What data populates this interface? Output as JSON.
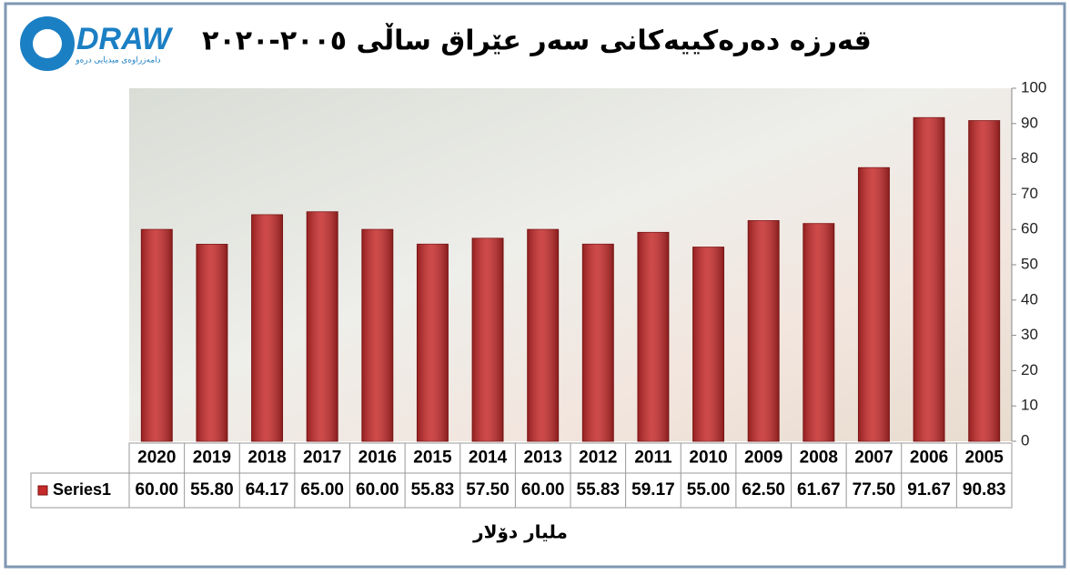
{
  "chart_data": {
    "type": "bar",
    "title": "قەرزە دەرەکییەکانی سەر عێراق ساڵی ٢٠٠٥-٢٠٢٠",
    "x_label": "ملیار دۆلار",
    "categories": [
      "2020",
      "2019",
      "2018",
      "2017",
      "2016",
      "2015",
      "2014",
      "2013",
      "2012",
      "2011",
      "2010",
      "2009",
      "2008",
      "2007",
      "2006",
      "2005"
    ],
    "series": [
      {
        "name": "Series1",
        "color": "#c62a2a",
        "values": [
          60,
          55.8,
          64.17,
          65,
          60,
          55.83,
          57.5,
          60,
          55.83,
          59.17,
          55,
          62.5,
          61.67,
          77.5,
          91.67,
          90.83
        ],
        "value_labels": [
          "60.00",
          "55.80",
          "64.17",
          "65.00",
          "60.00",
          "55.83",
          "57.50",
          "60.00",
          "55.83",
          "59.17",
          "55.00",
          "62.50",
          "61.67",
          "77.50",
          "91.67",
          "90.83"
        ]
      }
    ],
    "ylim": [
      0,
      100
    ],
    "yticks": [
      0,
      10,
      20,
      30,
      40,
      50,
      60,
      70,
      80,
      90,
      100
    ],
    "grid": false
  },
  "logo": {
    "text": "DRAW",
    "tagline": "دامەزراوەی میدیایی درەو"
  }
}
